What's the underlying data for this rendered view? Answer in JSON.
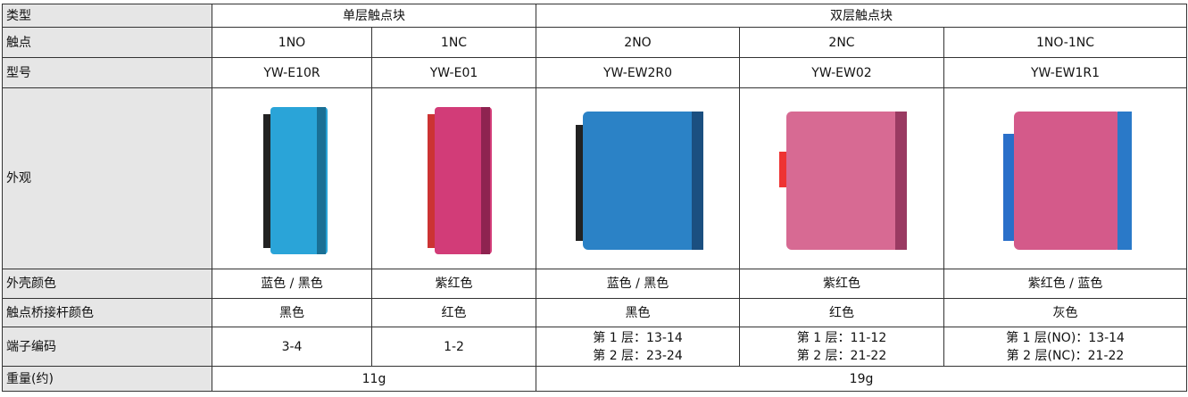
{
  "table": {
    "rows": [
      [
        "类型",
        "单层触点块",
        "双层触点块"
      ],
      [
        "触点",
        "1NO",
        "1NC",
        "2NO",
        "2NC",
        "1NO-1NC"
      ],
      [
        "型号",
        "YW-E10R",
        "YW-E01",
        "YW-EW2R0",
        "YW-EW02",
        "YW-EW1R1"
      ],
      [
        "外观"
      ],
      [
        "外壳颜色",
        "蓝色 / 黑色",
        "紫红色",
        "蓝色 / 黑色",
        "紫红色",
        "紫红色 / 蓝色"
      ],
      [
        "触点桥接杆颜色",
        "黑色",
        "红色",
        "黑色",
        "红色",
        "灰色"
      ],
      [
        "端子编码",
        "3-4",
        "1-2",
        [
          "第 1 层：13-14",
          "第 2 层：23-24"
        ],
        [
          "第 1 层：11-12",
          "第 2 层：21-22"
        ],
        [
          "第 1 层(NO)：13-14",
          "第 2 层(NC)：21-22"
        ]
      ],
      [
        "重量(约)",
        "11g",
        "19g"
      ]
    ]
  }
}
